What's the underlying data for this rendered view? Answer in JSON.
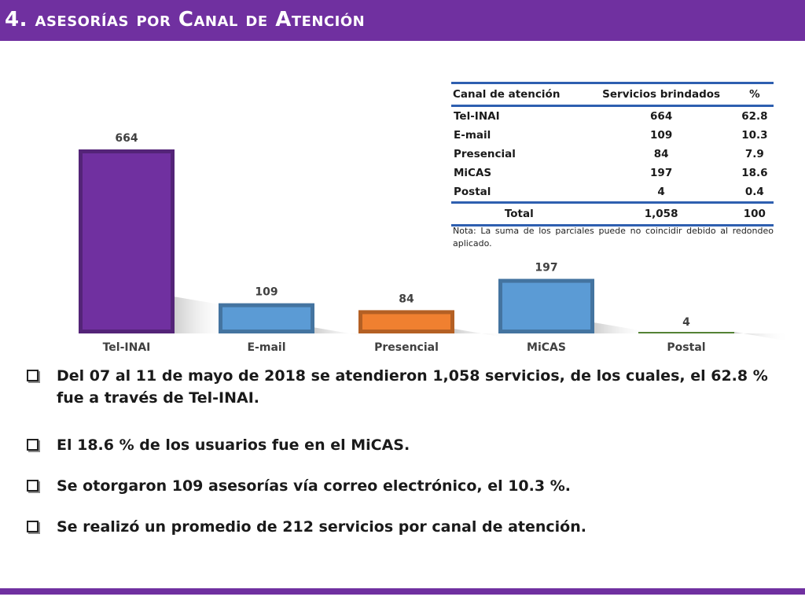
{
  "header": {
    "title": "4. asesorías por Canal de Atención"
  },
  "chart_data": {
    "type": "bar",
    "categories": [
      "Tel-INAI",
      "E-mail",
      "Presencial",
      "MiCAS",
      "Postal"
    ],
    "values": [
      664,
      109,
      84,
      197,
      4
    ],
    "colors": [
      "#7030a0",
      "#5b9bd5",
      "#f08030",
      "#5b9bd5",
      "#70ad47"
    ],
    "title": "",
    "xlabel": "",
    "ylabel": "",
    "ylim": [
      0,
      664
    ],
    "grid": false,
    "legend": "none"
  },
  "table": {
    "headers": [
      "Canal de atención",
      "Servicios brindados",
      "%"
    ],
    "rows": [
      [
        "Tel-INAI",
        "664",
        "62.8"
      ],
      [
        "E-mail",
        "109",
        "10.3"
      ],
      [
        "Presencial",
        "84",
        "7.9"
      ],
      [
        "MiCAS",
        "197",
        "18.6"
      ],
      [
        "Postal",
        "4",
        "0.4"
      ]
    ],
    "total": [
      "Total",
      "1,058",
      "100"
    ],
    "note": "Nota: La suma de los parciales puede no coincidir debido al redondeo aplicado."
  },
  "bullets": [
    "Del 07 al 11 de mayo de 2018 se atendieron 1,058 servicios, de los cuales, el 62.8 % fue a través de Tel-INAI.",
    "El 18.6 % de los usuarios fue en el MiCAS.",
    "Se otorgaron 109 asesorías vía correo electrónico, el 10.3 %.",
    "Se realizó un promedio de 212 servicios por canal de atención."
  ],
  "icons": {
    "bullet": "checkbox-icon"
  }
}
